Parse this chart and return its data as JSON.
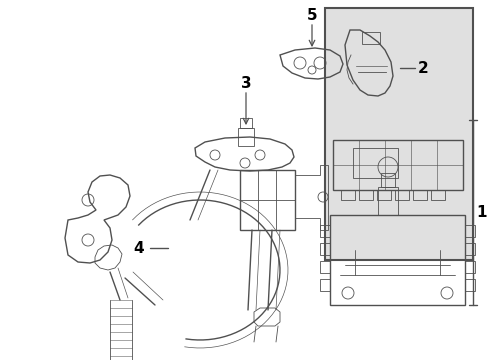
{
  "bg_color": "#ffffff",
  "box_bg_color": "#e0e0e0",
  "line_color": "#505050",
  "label_color": "#000000",
  "font_size_labels": 10,
  "figsize": [
    4.9,
    3.6
  ],
  "dpi": 100
}
